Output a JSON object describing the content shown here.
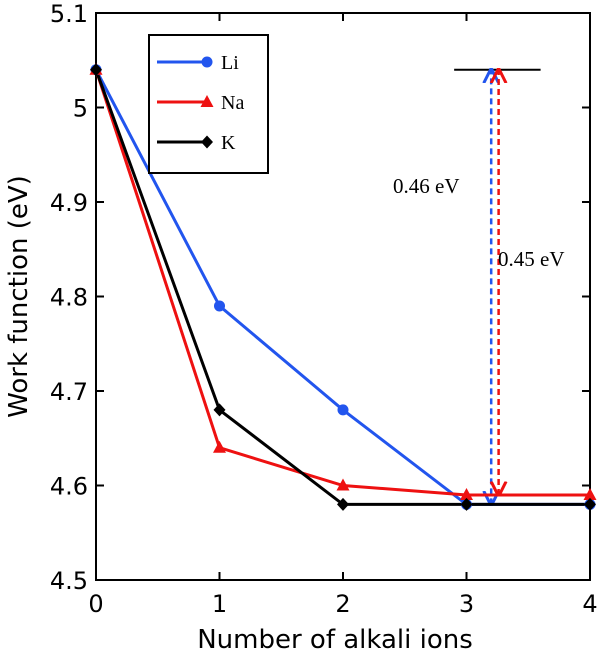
{
  "chart_data": {
    "type": "line",
    "title": "",
    "xlabel": "Number of alkali ions",
    "ylabel": "Work function (eV)",
    "xlim": [
      0,
      4
    ],
    "ylim": [
      4.5,
      5.1
    ],
    "x_ticks": [
      "0",
      "1",
      "2",
      "3",
      "4"
    ],
    "y_ticks": [
      "4.5",
      "4.6",
      "4.7",
      "4.8",
      "4.9",
      "5",
      "5.1"
    ],
    "grid": false,
    "legend_position": "top-left",
    "x": [
      0,
      1,
      2,
      3,
      4
    ],
    "series": [
      {
        "name": "Li",
        "color": "#2255ee",
        "marker": "circle",
        "values": [
          5.04,
          4.79,
          4.68,
          4.58,
          4.58
        ]
      },
      {
        "name": "Na",
        "color": "#ee1111",
        "marker": "triangle",
        "values": [
          5.04,
          4.64,
          4.6,
          4.59,
          4.59
        ]
      },
      {
        "name": "K",
        "color": "#000000",
        "marker": "diamond",
        "values": [
          5.04,
          4.68,
          4.58,
          4.58,
          4.58
        ]
      }
    ],
    "annotations": [
      {
        "text": "0.46 eV",
        "color": "#2255ee",
        "x": 3.2,
        "from": 4.58,
        "to": 5.04
      },
      {
        "text": "0.45 eV",
        "color": "#ee1111",
        "x": 3.26,
        "from": 4.59,
        "to": 5.04
      }
    ],
    "reference_line": {
      "y": 5.04,
      "x_from": 2.9,
      "x_to": 3.6
    }
  }
}
